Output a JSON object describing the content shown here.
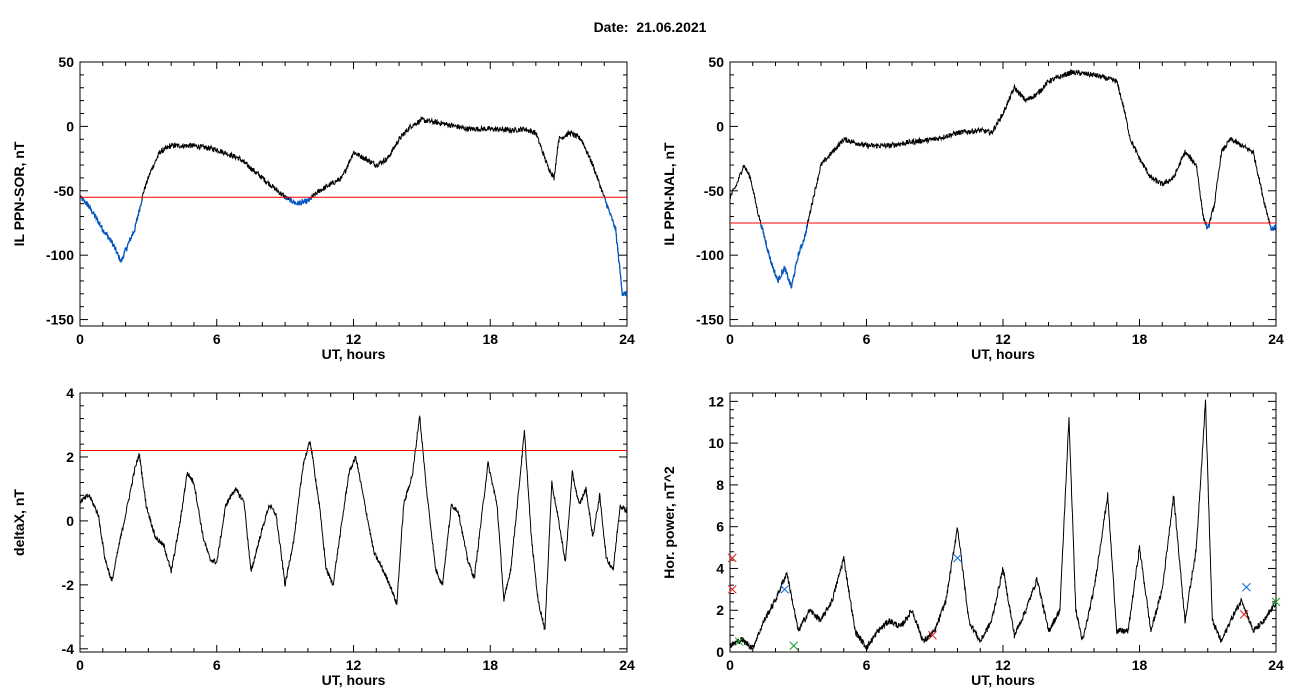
{
  "header": {
    "date_label": "Date:",
    "date_value": "21.06.2021"
  },
  "colors": {
    "line": "#000000",
    "threshold": "#ff0000",
    "below": "#0057c8",
    "marker_red": "#e02020",
    "marker_blue": "#0b6fd6",
    "marker_green": "#16a02a"
  },
  "chart_data": [
    {
      "id": "ppn-sor",
      "type": "line",
      "title": "",
      "xlabel": "UT, hours",
      "ylabel": "IL PPN-SOR, nT",
      "xlim": [
        0,
        24
      ],
      "ylim": [
        -155,
        50
      ],
      "xticks": [
        0,
        6,
        12,
        18,
        24
      ],
      "yticks": [
        50,
        0,
        -50,
        -100,
        -150
      ],
      "threshold": -55,
      "below_color": "blue",
      "keyframes": [
        [
          0,
          -55
        ],
        [
          0.3,
          -60
        ],
        [
          0.6,
          -68
        ],
        [
          1,
          -80
        ],
        [
          1.4,
          -90
        ],
        [
          1.8,
          -105
        ],
        [
          2.1,
          -92
        ],
        [
          2.4,
          -80
        ],
        [
          2.6,
          -65
        ],
        [
          2.8,
          -50
        ],
        [
          3.1,
          -35
        ],
        [
          3.5,
          -20
        ],
        [
          4,
          -15
        ],
        [
          5,
          -15
        ],
        [
          6,
          -18
        ],
        [
          7,
          -25
        ],
        [
          8,
          -40
        ],
        [
          9,
          -55
        ],
        [
          9.5,
          -60
        ],
        [
          10,
          -58
        ],
        [
          10.5,
          -50
        ],
        [
          11,
          -45
        ],
        [
          11.5,
          -40
        ],
        [
          12,
          -20
        ],
        [
          12.5,
          -25
        ],
        [
          13,
          -30
        ],
        [
          13.5,
          -25
        ],
        [
          14,
          -10
        ],
        [
          14.5,
          0
        ],
        [
          15,
          5
        ],
        [
          16,
          2
        ],
        [
          17,
          -2
        ],
        [
          18,
          -2
        ],
        [
          19,
          -3
        ],
        [
          19.5,
          -2
        ],
        [
          20,
          -5
        ],
        [
          20.5,
          -30
        ],
        [
          20.8,
          -40
        ],
        [
          21,
          -10
        ],
        [
          21.5,
          -5
        ],
        [
          22,
          -10
        ],
        [
          22.5,
          -30
        ],
        [
          23,
          -55
        ],
        [
          23.5,
          -80
        ],
        [
          23.8,
          -130
        ],
        [
          24,
          -130
        ]
      ]
    },
    {
      "id": "ppn-nal",
      "type": "line",
      "title": "",
      "xlabel": "UT, hours",
      "ylabel": "IL PPN-NAL, nT",
      "xlim": [
        0,
        24
      ],
      "ylim": [
        -155,
        50
      ],
      "xticks": [
        0,
        6,
        12,
        18,
        24
      ],
      "yticks": [
        50,
        0,
        -50,
        -100,
        -150
      ],
      "threshold": -75,
      "below_color": "blue",
      "keyframes": [
        [
          0,
          -55
        ],
        [
          0.3,
          -45
        ],
        [
          0.6,
          -30
        ],
        [
          0.9,
          -40
        ],
        [
          1.2,
          -65
        ],
        [
          1.5,
          -85
        ],
        [
          1.8,
          -105
        ],
        [
          2.1,
          -120
        ],
        [
          2.4,
          -110
        ],
        [
          2.7,
          -125
        ],
        [
          3,
          -100
        ],
        [
          3.3,
          -85
        ],
        [
          3.6,
          -60
        ],
        [
          4,
          -30
        ],
        [
          5,
          -10
        ],
        [
          6,
          -15
        ],
        [
          7,
          -15
        ],
        [
          8,
          -12
        ],
        [
          9,
          -10
        ],
        [
          10,
          -5
        ],
        [
          11,
          -3
        ],
        [
          11.5,
          -5
        ],
        [
          12,
          10
        ],
        [
          12.5,
          30
        ],
        [
          13,
          20
        ],
        [
          13.5,
          25
        ],
        [
          14,
          35
        ],
        [
          15,
          42
        ],
        [
          16,
          40
        ],
        [
          17,
          35
        ],
        [
          17.3,
          15
        ],
        [
          17.6,
          -10
        ],
        [
          18,
          -25
        ],
        [
          18.5,
          -40
        ],
        [
          19,
          -45
        ],
        [
          19.5,
          -40
        ],
        [
          20,
          -20
        ],
        [
          20.5,
          -30
        ],
        [
          20.8,
          -70
        ],
        [
          21,
          -80
        ],
        [
          21.3,
          -60
        ],
        [
          21.6,
          -20
        ],
        [
          22,
          -10
        ],
        [
          22.5,
          -15
        ],
        [
          23,
          -20
        ],
        [
          23.5,
          -60
        ],
        [
          23.8,
          -80
        ],
        [
          24,
          -78
        ]
      ]
    },
    {
      "id": "deltax",
      "type": "line",
      "title": "",
      "xlabel": "UT, hours",
      "ylabel": "deltaX, nT",
      "xlim": [
        0,
        24
      ],
      "ylim": [
        -4.1,
        4
      ],
      "xticks": [
        0,
        6,
        12,
        18,
        24
      ],
      "yticks": [
        4,
        2,
        0,
        -2,
        -4
      ],
      "threshold": 2.2,
      "keyframes": [
        [
          0,
          0.6
        ],
        [
          0.4,
          0.8
        ],
        [
          0.8,
          0.2
        ],
        [
          1.1,
          -1.2
        ],
        [
          1.4,
          -1.9
        ],
        [
          1.7,
          -0.8
        ],
        [
          2,
          0.2
        ],
        [
          2.4,
          1.6
        ],
        [
          2.6,
          2.1
        ],
        [
          2.9,
          0.5
        ],
        [
          3.3,
          -0.5
        ],
        [
          3.7,
          -0.8
        ],
        [
          4,
          -1.6
        ],
        [
          4.4,
          0
        ],
        [
          4.7,
          1.5
        ],
        [
          5,
          1.2
        ],
        [
          5.4,
          -0.5
        ],
        [
          5.7,
          -1.2
        ],
        [
          6,
          -1.3
        ],
        [
          6.4,
          0.5
        ],
        [
          6.8,
          1.0
        ],
        [
          7.2,
          0.6
        ],
        [
          7.5,
          -1.6
        ],
        [
          7.9,
          -0.5
        ],
        [
          8.3,
          0.5
        ],
        [
          8.6,
          0.2
        ],
        [
          9,
          -2.0
        ],
        [
          9.4,
          -0.5
        ],
        [
          9.8,
          1.8
        ],
        [
          10.1,
          2.5
        ],
        [
          10.5,
          0.5
        ],
        [
          10.8,
          -1.5
        ],
        [
          11.1,
          -2.0
        ],
        [
          11.4,
          -0.5
        ],
        [
          11.8,
          1.5
        ],
        [
          12.1,
          2.0
        ],
        [
          12.5,
          0.5
        ],
        [
          12.9,
          -1.0
        ],
        [
          13.2,
          -1.4
        ],
        [
          13.6,
          -2.0
        ],
        [
          13.9,
          -2.6
        ],
        [
          14.2,
          0.5
        ],
        [
          14.6,
          1.5
        ],
        [
          14.9,
          3.3
        ],
        [
          15.2,
          1.0
        ],
        [
          15.6,
          -1.5
        ],
        [
          15.9,
          -2.0
        ],
        [
          16.3,
          0.5
        ],
        [
          16.6,
          0.3
        ],
        [
          17,
          -1.2
        ],
        [
          17.3,
          -1.8
        ],
        [
          17.6,
          0
        ],
        [
          17.9,
          1.8
        ],
        [
          18.3,
          0.5
        ],
        [
          18.6,
          -2.5
        ],
        [
          18.9,
          -1.5
        ],
        [
          19.2,
          0.6
        ],
        [
          19.5,
          2.8
        ],
        [
          19.8,
          -0.5
        ],
        [
          20.1,
          -2.5
        ],
        [
          20.4,
          -3.4
        ],
        [
          20.7,
          1.2
        ],
        [
          21,
          0
        ],
        [
          21.3,
          -1.3
        ],
        [
          21.6,
          1.5
        ],
        [
          21.9,
          0.5
        ],
        [
          22.2,
          1.0
        ],
        [
          22.5,
          -0.5
        ],
        [
          22.8,
          0.8
        ],
        [
          23.1,
          -1.2
        ],
        [
          23.4,
          -1.5
        ],
        [
          23.7,
          0.5
        ],
        [
          24,
          0.3
        ]
      ]
    },
    {
      "id": "hor-power",
      "type": "line",
      "title": "",
      "xlabel": "UT, hours",
      "ylabel": "Hor. power, nT^2",
      "xlim": [
        0,
        24
      ],
      "ylim": [
        0,
        12.4
      ],
      "xticks": [
        0,
        6,
        12,
        18,
        24
      ],
      "yticks": [
        0,
        2,
        4,
        6,
        8,
        10,
        12
      ],
      "keyframes": [
        [
          0,
          0.3
        ],
        [
          0.5,
          0.6
        ],
        [
          1,
          0.2
        ],
        [
          1.5,
          1.5
        ],
        [
          2,
          2.5
        ],
        [
          2.5,
          3.8
        ],
        [
          3,
          1.0
        ],
        [
          3.5,
          2.0
        ],
        [
          4,
          1.5
        ],
        [
          4.5,
          2.5
        ],
        [
          5,
          4.5
        ],
        [
          5.5,
          1.0
        ],
        [
          6,
          0.2
        ],
        [
          6.5,
          1.0
        ],
        [
          7,
          1.5
        ],
        [
          7.5,
          1.2
        ],
        [
          8,
          2.0
        ],
        [
          8.5,
          0.5
        ],
        [
          9,
          1.0
        ],
        [
          9.5,
          2.5
        ],
        [
          10,
          6.0
        ],
        [
          10.5,
          1.5
        ],
        [
          11,
          0.5
        ],
        [
          11.5,
          1.5
        ],
        [
          12,
          4.0
        ],
        [
          12.5,
          0.8
        ],
        [
          13,
          2.0
        ],
        [
          13.5,
          3.5
        ],
        [
          14,
          1.0
        ],
        [
          14.5,
          2.0
        ],
        [
          14.9,
          11.2
        ],
        [
          15.2,
          2.0
        ],
        [
          15.5,
          0.5
        ],
        [
          16,
          3.0
        ],
        [
          16.6,
          7.5
        ],
        [
          17,
          1.0
        ],
        [
          17.5,
          1.0
        ],
        [
          18,
          5.0
        ],
        [
          18.5,
          1.0
        ],
        [
          19,
          3.0
        ],
        [
          19.5,
          7.5
        ],
        [
          20,
          1.5
        ],
        [
          20.5,
          5.0
        ],
        [
          20.9,
          12.0
        ],
        [
          21.2,
          1.5
        ],
        [
          21.6,
          0.5
        ],
        [
          22,
          1.5
        ],
        [
          22.5,
          2.5
        ],
        [
          23,
          1.0
        ],
        [
          23.5,
          1.5
        ],
        [
          24,
          2.4
        ]
      ],
      "markers": [
        {
          "x": 0.1,
          "y": 4.5,
          "color": "red"
        },
        {
          "x": 0.1,
          "y": 3.0,
          "color": "red"
        },
        {
          "x": 0.4,
          "y": 0.5,
          "color": "green"
        },
        {
          "x": 2.4,
          "y": 3.0,
          "color": "blue"
        },
        {
          "x": 2.8,
          "y": 0.3,
          "color": "green"
        },
        {
          "x": 8.9,
          "y": 0.8,
          "color": "red"
        },
        {
          "x": 10.0,
          "y": 4.5,
          "color": "blue"
        },
        {
          "x": 22.7,
          "y": 3.1,
          "color": "blue"
        },
        {
          "x": 22.6,
          "y": 1.8,
          "color": "red"
        },
        {
          "x": 24.0,
          "y": 2.4,
          "color": "green"
        }
      ]
    }
  ]
}
